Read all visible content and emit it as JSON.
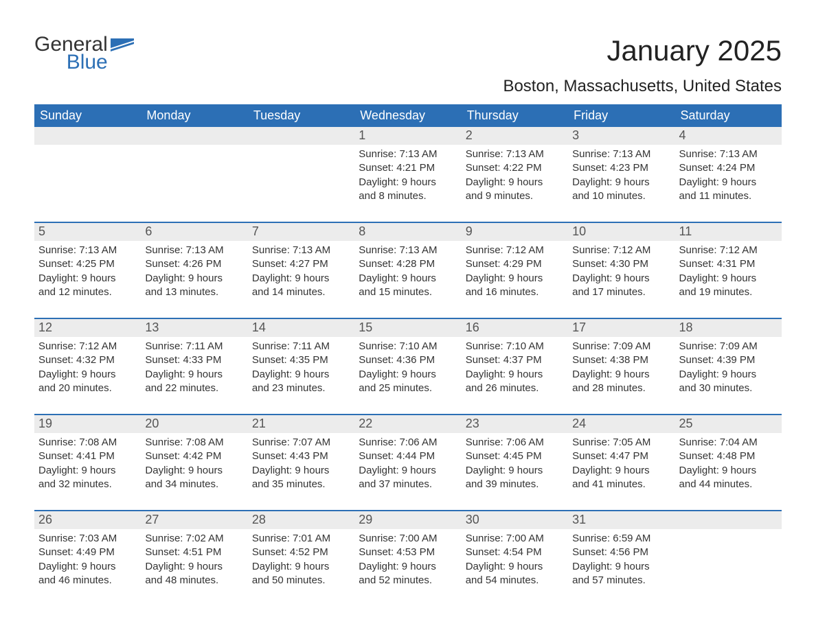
{
  "logo": {
    "general": "General",
    "blue": "Blue"
  },
  "title": "January 2025",
  "subtitle": "Boston, Massachusetts, United States",
  "colors": {
    "header_bg": "#2c6fb5",
    "header_text": "#ffffff",
    "daynum_bg": "#ececec",
    "daynum_text": "#555555",
    "body_text": "#333333",
    "page_bg": "#ffffff",
    "logo_blue": "#2c6fb5"
  },
  "weekdays": [
    "Sunday",
    "Monday",
    "Tuesday",
    "Wednesday",
    "Thursday",
    "Friday",
    "Saturday"
  ],
  "weeks": [
    [
      {
        "n": "",
        "sr": "",
        "ss": "",
        "d1": "",
        "d2": ""
      },
      {
        "n": "",
        "sr": "",
        "ss": "",
        "d1": "",
        "d2": ""
      },
      {
        "n": "",
        "sr": "",
        "ss": "",
        "d1": "",
        "d2": ""
      },
      {
        "n": "1",
        "sr": "Sunrise: 7:13 AM",
        "ss": "Sunset: 4:21 PM",
        "d1": "Daylight: 9 hours",
        "d2": "and 8 minutes."
      },
      {
        "n": "2",
        "sr": "Sunrise: 7:13 AM",
        "ss": "Sunset: 4:22 PM",
        "d1": "Daylight: 9 hours",
        "d2": "and 9 minutes."
      },
      {
        "n": "3",
        "sr": "Sunrise: 7:13 AM",
        "ss": "Sunset: 4:23 PM",
        "d1": "Daylight: 9 hours",
        "d2": "and 10 minutes."
      },
      {
        "n": "4",
        "sr": "Sunrise: 7:13 AM",
        "ss": "Sunset: 4:24 PM",
        "d1": "Daylight: 9 hours",
        "d2": "and 11 minutes."
      }
    ],
    [
      {
        "n": "5",
        "sr": "Sunrise: 7:13 AM",
        "ss": "Sunset: 4:25 PM",
        "d1": "Daylight: 9 hours",
        "d2": "and 12 minutes."
      },
      {
        "n": "6",
        "sr": "Sunrise: 7:13 AM",
        "ss": "Sunset: 4:26 PM",
        "d1": "Daylight: 9 hours",
        "d2": "and 13 minutes."
      },
      {
        "n": "7",
        "sr": "Sunrise: 7:13 AM",
        "ss": "Sunset: 4:27 PM",
        "d1": "Daylight: 9 hours",
        "d2": "and 14 minutes."
      },
      {
        "n": "8",
        "sr": "Sunrise: 7:13 AM",
        "ss": "Sunset: 4:28 PM",
        "d1": "Daylight: 9 hours",
        "d2": "and 15 minutes."
      },
      {
        "n": "9",
        "sr": "Sunrise: 7:12 AM",
        "ss": "Sunset: 4:29 PM",
        "d1": "Daylight: 9 hours",
        "d2": "and 16 minutes."
      },
      {
        "n": "10",
        "sr": "Sunrise: 7:12 AM",
        "ss": "Sunset: 4:30 PM",
        "d1": "Daylight: 9 hours",
        "d2": "and 17 minutes."
      },
      {
        "n": "11",
        "sr": "Sunrise: 7:12 AM",
        "ss": "Sunset: 4:31 PM",
        "d1": "Daylight: 9 hours",
        "d2": "and 19 minutes."
      }
    ],
    [
      {
        "n": "12",
        "sr": "Sunrise: 7:12 AM",
        "ss": "Sunset: 4:32 PM",
        "d1": "Daylight: 9 hours",
        "d2": "and 20 minutes."
      },
      {
        "n": "13",
        "sr": "Sunrise: 7:11 AM",
        "ss": "Sunset: 4:33 PM",
        "d1": "Daylight: 9 hours",
        "d2": "and 22 minutes."
      },
      {
        "n": "14",
        "sr": "Sunrise: 7:11 AM",
        "ss": "Sunset: 4:35 PM",
        "d1": "Daylight: 9 hours",
        "d2": "and 23 minutes."
      },
      {
        "n": "15",
        "sr": "Sunrise: 7:10 AM",
        "ss": "Sunset: 4:36 PM",
        "d1": "Daylight: 9 hours",
        "d2": "and 25 minutes."
      },
      {
        "n": "16",
        "sr": "Sunrise: 7:10 AM",
        "ss": "Sunset: 4:37 PM",
        "d1": "Daylight: 9 hours",
        "d2": "and 26 minutes."
      },
      {
        "n": "17",
        "sr": "Sunrise: 7:09 AM",
        "ss": "Sunset: 4:38 PM",
        "d1": "Daylight: 9 hours",
        "d2": "and 28 minutes."
      },
      {
        "n": "18",
        "sr": "Sunrise: 7:09 AM",
        "ss": "Sunset: 4:39 PM",
        "d1": "Daylight: 9 hours",
        "d2": "and 30 minutes."
      }
    ],
    [
      {
        "n": "19",
        "sr": "Sunrise: 7:08 AM",
        "ss": "Sunset: 4:41 PM",
        "d1": "Daylight: 9 hours",
        "d2": "and 32 minutes."
      },
      {
        "n": "20",
        "sr": "Sunrise: 7:08 AM",
        "ss": "Sunset: 4:42 PM",
        "d1": "Daylight: 9 hours",
        "d2": "and 34 minutes."
      },
      {
        "n": "21",
        "sr": "Sunrise: 7:07 AM",
        "ss": "Sunset: 4:43 PM",
        "d1": "Daylight: 9 hours",
        "d2": "and 35 minutes."
      },
      {
        "n": "22",
        "sr": "Sunrise: 7:06 AM",
        "ss": "Sunset: 4:44 PM",
        "d1": "Daylight: 9 hours",
        "d2": "and 37 minutes."
      },
      {
        "n": "23",
        "sr": "Sunrise: 7:06 AM",
        "ss": "Sunset: 4:45 PM",
        "d1": "Daylight: 9 hours",
        "d2": "and 39 minutes."
      },
      {
        "n": "24",
        "sr": "Sunrise: 7:05 AM",
        "ss": "Sunset: 4:47 PM",
        "d1": "Daylight: 9 hours",
        "d2": "and 41 minutes."
      },
      {
        "n": "25",
        "sr": "Sunrise: 7:04 AM",
        "ss": "Sunset: 4:48 PM",
        "d1": "Daylight: 9 hours",
        "d2": "and 44 minutes."
      }
    ],
    [
      {
        "n": "26",
        "sr": "Sunrise: 7:03 AM",
        "ss": "Sunset: 4:49 PM",
        "d1": "Daylight: 9 hours",
        "d2": "and 46 minutes."
      },
      {
        "n": "27",
        "sr": "Sunrise: 7:02 AM",
        "ss": "Sunset: 4:51 PM",
        "d1": "Daylight: 9 hours",
        "d2": "and 48 minutes."
      },
      {
        "n": "28",
        "sr": "Sunrise: 7:01 AM",
        "ss": "Sunset: 4:52 PM",
        "d1": "Daylight: 9 hours",
        "d2": "and 50 minutes."
      },
      {
        "n": "29",
        "sr": "Sunrise: 7:00 AM",
        "ss": "Sunset: 4:53 PM",
        "d1": "Daylight: 9 hours",
        "d2": "and 52 minutes."
      },
      {
        "n": "30",
        "sr": "Sunrise: 7:00 AM",
        "ss": "Sunset: 4:54 PM",
        "d1": "Daylight: 9 hours",
        "d2": "and 54 minutes."
      },
      {
        "n": "31",
        "sr": "Sunrise: 6:59 AM",
        "ss": "Sunset: 4:56 PM",
        "d1": "Daylight: 9 hours",
        "d2": "and 57 minutes."
      },
      {
        "n": "",
        "sr": "",
        "ss": "",
        "d1": "",
        "d2": ""
      }
    ]
  ]
}
